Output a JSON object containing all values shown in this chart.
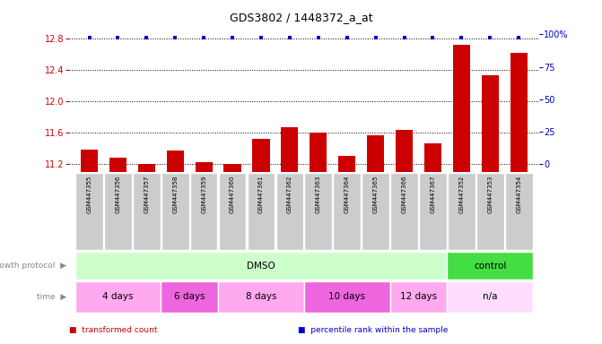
{
  "title": "GDS3802 / 1448372_a_at",
  "samples": [
    "GSM447355",
    "GSM447356",
    "GSM447357",
    "GSM447358",
    "GSM447359",
    "GSM447360",
    "GSM447361",
    "GSM447362",
    "GSM447363",
    "GSM447364",
    "GSM447365",
    "GSM447366",
    "GSM447367",
    "GSM447352",
    "GSM447353",
    "GSM447354"
  ],
  "bar_values": [
    11.38,
    11.28,
    11.2,
    11.37,
    11.23,
    11.2,
    11.52,
    11.67,
    11.6,
    11.3,
    11.57,
    11.63,
    11.47,
    12.72,
    12.33,
    12.62
  ],
  "bar_color": "#cc0000",
  "percentile_color": "#0000cc",
  "ylim_left": [
    11.1,
    12.85
  ],
  "ylim_right": [
    -6.25,
    100
  ],
  "yticks_left": [
    11.2,
    11.6,
    12.0,
    12.4,
    12.8
  ],
  "yticks_right": [
    0,
    25,
    50,
    75,
    100
  ],
  "ylabel_left_color": "#cc0000",
  "ylabel_right_color": "#0000cc",
  "gridlines_y": [
    11.2,
    11.6,
    12.0,
    12.4,
    12.8
  ],
  "growth_protocol_groups": [
    {
      "label": "DMSO",
      "start": 0,
      "end": 13,
      "color": "#ccffcc"
    },
    {
      "label": "control",
      "start": 13,
      "end": 16,
      "color": "#44dd44"
    }
  ],
  "time_groups": [
    {
      "label": "4 days",
      "start": 0,
      "end": 3,
      "color": "#ffaaee"
    },
    {
      "label": "6 days",
      "start": 3,
      "end": 5,
      "color": "#ee66dd"
    },
    {
      "label": "8 days",
      "start": 5,
      "end": 8,
      "color": "#ffaaee"
    },
    {
      "label": "10 days",
      "start": 8,
      "end": 11,
      "color": "#ee66dd"
    },
    {
      "label": "12 days",
      "start": 11,
      "end": 13,
      "color": "#ffaaee"
    },
    {
      "label": "n/a",
      "start": 13,
      "end": 16,
      "color": "#ffddff"
    }
  ],
  "legend_items": [
    {
      "label": "transformed count",
      "color": "#cc0000"
    },
    {
      "label": "percentile rank within the sample",
      "color": "#0000cc"
    }
  ],
  "bg_color": "#ffffff",
  "tick_label_bg": "#cccccc"
}
